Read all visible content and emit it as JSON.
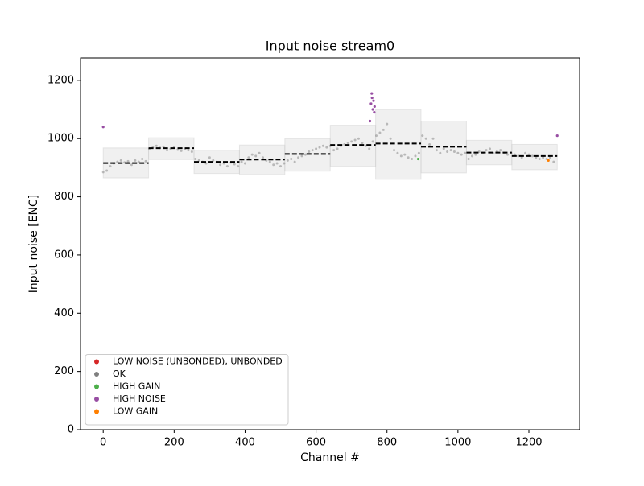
{
  "chart_data": {
    "type": "scatter",
    "title": "Input noise stream0",
    "x_label": "Channel #",
    "y_label": "Input noise [ENC]",
    "xlim": [
      -64,
      1343
    ],
    "ylim": [
      0,
      1277
    ],
    "xticks": [
      0,
      200,
      400,
      600,
      800,
      1000,
      1200
    ],
    "yticks": [
      0,
      200,
      400,
      600,
      800,
      1000,
      1200
    ],
    "legend_position": "lower left",
    "chips": [
      {
        "x0": 0,
        "x1": 128,
        "mean": 916,
        "low": 865,
        "high": 968
      },
      {
        "x0": 128,
        "x1": 256,
        "mean": 967,
        "low": 928,
        "high": 1003
      },
      {
        "x0": 256,
        "x1": 384,
        "mean": 920,
        "low": 880,
        "high": 960
      },
      {
        "x0": 384,
        "x1": 512,
        "mean": 928,
        "low": 876,
        "high": 978
      },
      {
        "x0": 512,
        "x1": 640,
        "mean": 947,
        "low": 888,
        "high": 1000
      },
      {
        "x0": 640,
        "x1": 768,
        "mean": 978,
        "low": 904,
        "high": 1046
      },
      {
        "x0": 768,
        "x1": 896,
        "mean": 983,
        "low": 860,
        "high": 1100
      },
      {
        "x0": 896,
        "x1": 1024,
        "mean": 972,
        "low": 882,
        "high": 1060
      },
      {
        "x0": 1024,
        "x1": 1152,
        "mean": 952,
        "low": 910,
        "high": 994
      },
      {
        "x0": 1152,
        "x1": 1280,
        "mean": 940,
        "low": 893,
        "high": 980
      }
    ],
    "series": [
      {
        "name": "LOW NOISE (UNBONDED), UNBONDED",
        "color": "#d62728",
        "x": [],
        "values": []
      },
      {
        "name": "OK",
        "color": "#7f7f7f",
        "x": [
          0,
          10,
          20,
          30,
          40,
          50,
          60,
          70,
          80,
          90,
          100,
          110,
          120,
          130,
          140,
          150,
          160,
          170,
          180,
          190,
          200,
          210,
          220,
          230,
          240,
          250,
          260,
          270,
          280,
          290,
          300,
          310,
          320,
          330,
          340,
          350,
          360,
          370,
          380,
          390,
          400,
          410,
          420,
          430,
          440,
          450,
          460,
          470,
          480,
          490,
          500,
          510,
          520,
          530,
          540,
          550,
          560,
          570,
          580,
          590,
          600,
          610,
          620,
          630,
          640,
          650,
          660,
          670,
          680,
          690,
          700,
          710,
          720,
          730,
          740,
          750,
          760,
          770,
          780,
          790,
          800,
          810,
          820,
          830,
          840,
          850,
          860,
          870,
          880,
          890,
          900,
          910,
          920,
          930,
          940,
          950,
          960,
          970,
          980,
          990,
          1000,
          1010,
          1020,
          1030,
          1040,
          1050,
          1060,
          1070,
          1080,
          1090,
          1100,
          1110,
          1120,
          1130,
          1140,
          1150,
          1160,
          1170,
          1180,
          1190,
          1200,
          1210,
          1220,
          1230,
          1240,
          1250,
          1260,
          1270
        ],
        "values": [
          885,
          890,
          905,
          915,
          920,
          925,
          918,
          922,
          910,
          925,
          920,
          930,
          922,
          965,
          970,
          975,
          968,
          972,
          960,
          965,
          970,
          962,
          958,
          965,
          960,
          955,
          930,
          925,
          920,
          915,
          935,
          925,
          920,
          910,
          915,
          905,
          918,
          912,
          905,
          920,
          915,
          935,
          945,
          940,
          950,
          935,
          925,
          920,
          910,
          915,
          905,
          915,
          925,
          930,
          920,
          935,
          940,
          945,
          955,
          960,
          965,
          970,
          975,
          970,
          975,
          960,
          965,
          975,
          980,
          985,
          990,
          995,
          1000,
          985,
          975,
          965,
          990,
          1010,
          1020,
          1030,
          1050,
          1000,
          960,
          950,
          940,
          945,
          935,
          930,
          940,
          950,
          1010,
          1000,
          980,
          1000,
          960,
          950,
          965,
          955,
          960,
          955,
          950,
          945,
          950,
          930,
          940,
          945,
          955,
          950,
          960,
          965,
          950,
          955,
          960,
          950,
          945,
          950,
          945,
          940,
          935,
          950,
          945,
          940,
          935,
          930,
          935,
          930,
          935,
          920
        ]
      },
      {
        "name": "HIGH GAIN",
        "color": "#4daf4a",
        "x": [
          888
        ],
        "values": [
          930
        ]
      },
      {
        "name": "HIGH NOISE",
        "color": "#984ea3",
        "x": [
          0,
          752,
          755,
          757,
          758,
          760,
          762,
          764,
          765,
          1280
        ],
        "values": [
          1040,
          1060,
          1120,
          1155,
          1140,
          1100,
          1130,
          1090,
          1110,
          1010
        ]
      },
      {
        "name": "LOW GAIN",
        "color": "#ff7f00",
        "x": [
          1255
        ],
        "values": [
          925
        ]
      }
    ]
  }
}
